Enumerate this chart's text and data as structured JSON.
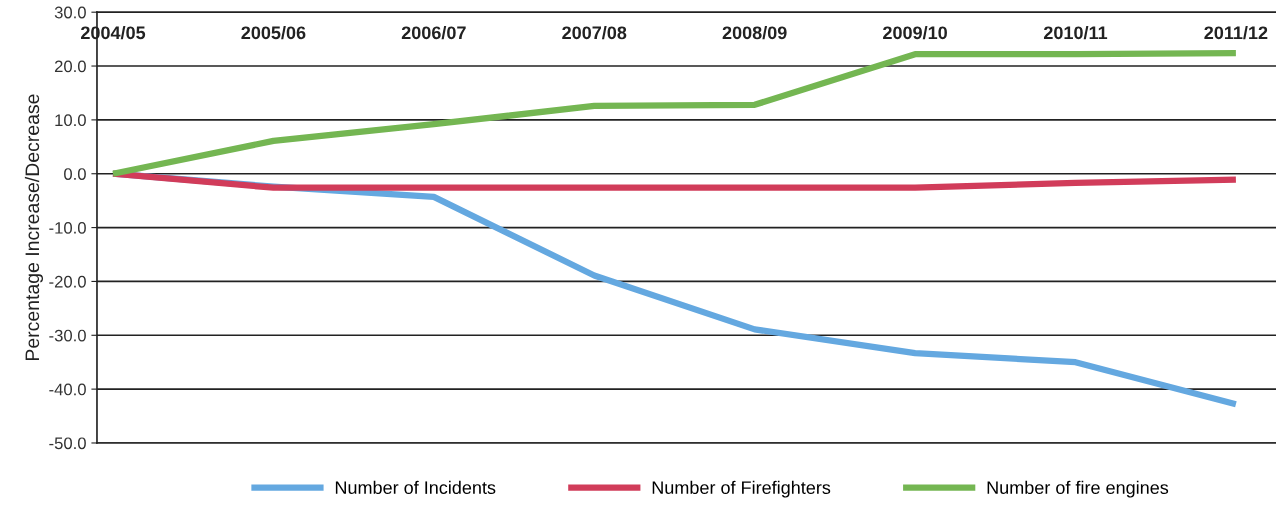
{
  "chart_data": {
    "type": "line",
    "ylabel": "Percentage Increase/Decrease",
    "categories": [
      "2004/05",
      "2005/06",
      "2006/07",
      "2007/08",
      "2008/09",
      "2009/10",
      "2010/11",
      "2011/12"
    ],
    "series": [
      {
        "name": "Number of Incidents",
        "color": "#64a8e0",
        "values": [
          0,
          -2.4,
          -4.3,
          -18.9,
          -28.9,
          -33.3,
          -35.0,
          -42.8
        ]
      },
      {
        "name": "Number of Firefighters",
        "color": "#d13c5a",
        "values": [
          0,
          -2.6,
          -2.6,
          -2.6,
          -2.6,
          -2.6,
          -1.7,
          -1.1
        ]
      },
      {
        "name": "Number of fire engines",
        "color": "#74b652",
        "values": [
          0,
          6.1,
          9.2,
          12.6,
          12.8,
          22.2,
          22.2,
          22.4
        ]
      }
    ],
    "ylim": [
      -50,
      30
    ],
    "yticks": [
      {
        "value": -50,
        "label": "-50.0"
      },
      {
        "value": -40,
        "label": "-40.0"
      },
      {
        "value": -30,
        "label": "-30.0"
      },
      {
        "value": -20,
        "label": "-20.0"
      },
      {
        "value": -10,
        "label": "-10.0"
      },
      {
        "value": 0,
        "label": "0.0"
      },
      {
        "value": 10,
        "label": "10.0"
      },
      {
        "value": 20,
        "label": "20.0"
      },
      {
        "value": 30,
        "label": "30.0"
      }
    ],
    "grid": "y",
    "legend": "bottom",
    "marker": "none",
    "line_style": "solid"
  }
}
